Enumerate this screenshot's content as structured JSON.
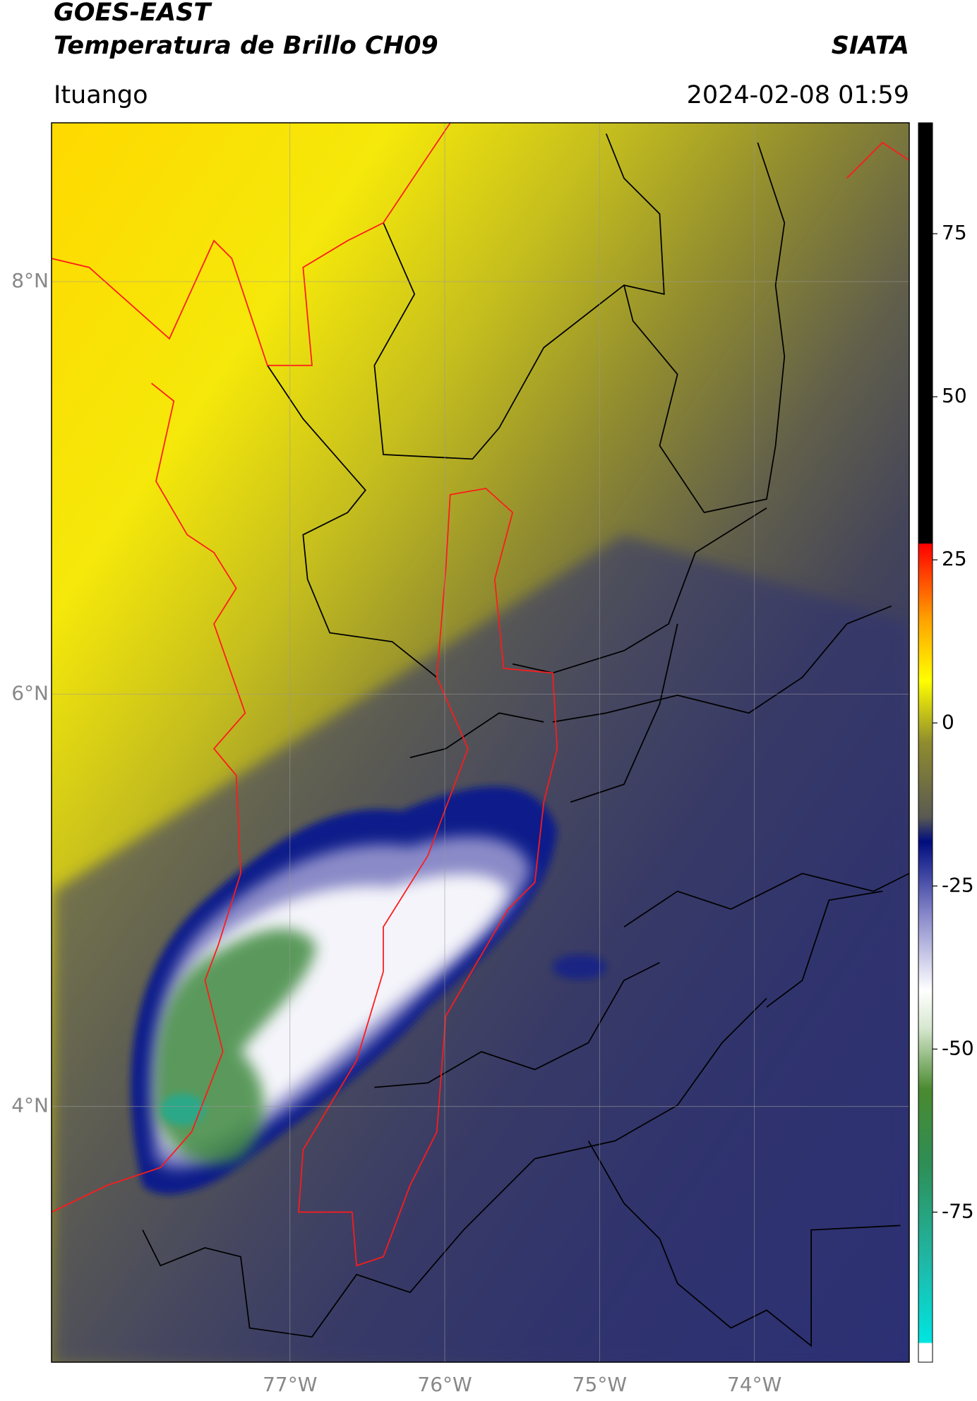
{
  "header": {
    "title": "GOES-EAST",
    "subtitle": "Temperatura de Brillo CH09",
    "agency": "SIATA",
    "location": "Ituango",
    "timestamp": "2024-02-08 01:59"
  },
  "map": {
    "lon_range": [
      -78.54,
      -73.0
    ],
    "lat_range": [
      2.76,
      8.77
    ],
    "lon_ticks": [
      {
        "value": -77,
        "label": "77°W"
      },
      {
        "value": -76,
        "label": "76°W"
      },
      {
        "value": -75,
        "label": "75°W"
      },
      {
        "value": -74,
        "label": "74°W"
      }
    ],
    "lat_ticks": [
      {
        "value": 8,
        "label": "8°N"
      },
      {
        "value": 6,
        "label": "6°N"
      },
      {
        "value": 4,
        "label": "4°N"
      }
    ],
    "grid": true
  },
  "colorbar": {
    "range": [
      -98,
      92
    ],
    "ticks": [
      75,
      50,
      25,
      0,
      -25,
      -50,
      -75
    ]
  }
}
